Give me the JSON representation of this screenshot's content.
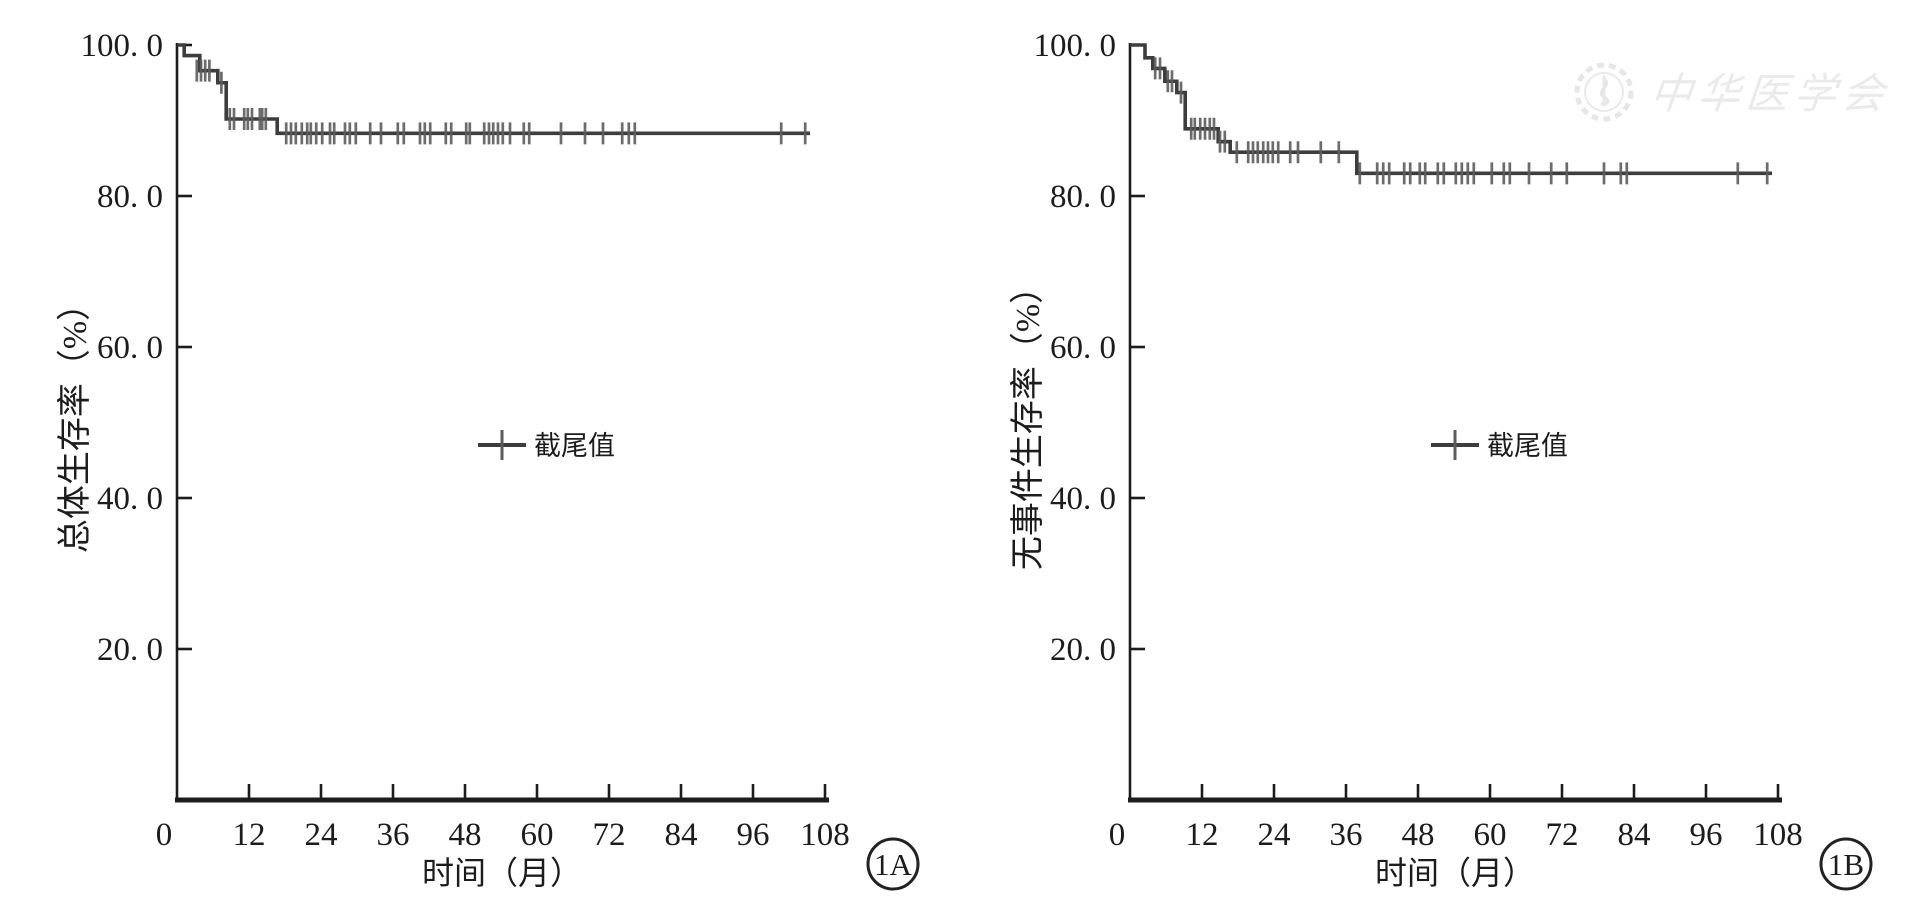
{
  "figure": {
    "background": "#ffffff",
    "curve_color": "#3d3d3d",
    "censor_color": "#5c5c5c",
    "axis_color": "#1c1c1c",
    "watermark": {
      "text": "中华医学会",
      "logo": "cma-emblem-icon",
      "color": "#eaeaea"
    }
  },
  "chart_data": [
    {
      "type": "line",
      "subtype": "kaplan-meier-step",
      "panel_tag": "1A",
      "xlabel": "时间（月）",
      "ylabel": "总体生存率（%）",
      "legend_label": "截尾值",
      "legend_marker": "censor-plus",
      "xlim": [
        0,
        110
      ],
      "ylim": [
        0,
        100
      ],
      "x_ticks": [
        0,
        12,
        24,
        36,
        48,
        60,
        72,
        84,
        96,
        108
      ],
      "y_tick_values": [
        100,
        80,
        60,
        40,
        20
      ],
      "y_tick_labels": [
        "100. 0",
        "80. 0",
        "60. 0",
        "40. 0",
        "20. 0"
      ],
      "series": [
        {
          "name": "总体生存率",
          "steps": [
            [
              0,
              100
            ],
            [
              1.2,
              98.6
            ],
            [
              3.8,
              96.6
            ],
            [
              6.8,
              95.0
            ],
            [
              8.2,
              90.2
            ],
            [
              16.7,
              88.3
            ]
          ],
          "end_month": 105.5
        }
      ],
      "censor_marks": [
        [
          3.3,
          96.6
        ],
        [
          4.0,
          96.6
        ],
        [
          4.7,
          96.6
        ],
        [
          5.4,
          96.6
        ],
        [
          7.4,
          95.0
        ],
        [
          8.8,
          90.2
        ],
        [
          9.5,
          90.2
        ],
        [
          11.2,
          90.2
        ],
        [
          11.8,
          90.2
        ],
        [
          12.5,
          90.2
        ],
        [
          13.8,
          90.2
        ],
        [
          14.2,
          90.2
        ],
        [
          14.8,
          90.2
        ],
        [
          18.2,
          88.3
        ],
        [
          19.0,
          88.3
        ],
        [
          19.8,
          88.3
        ],
        [
          20.8,
          88.3
        ],
        [
          21.7,
          88.3
        ],
        [
          22.3,
          88.3
        ],
        [
          23.2,
          88.3
        ],
        [
          24.2,
          88.3
        ],
        [
          25.5,
          88.3
        ],
        [
          26.2,
          88.3
        ],
        [
          28.0,
          88.3
        ],
        [
          28.8,
          88.3
        ],
        [
          29.8,
          88.3
        ],
        [
          32.2,
          88.3
        ],
        [
          34.0,
          88.3
        ],
        [
          36.8,
          88.3
        ],
        [
          37.8,
          88.3
        ],
        [
          40.5,
          88.3
        ],
        [
          41.3,
          88.3
        ],
        [
          42.2,
          88.3
        ],
        [
          44.8,
          88.3
        ],
        [
          45.7,
          88.3
        ],
        [
          48.2,
          88.3
        ],
        [
          48.8,
          88.3
        ],
        [
          51.2,
          88.3
        ],
        [
          52.0,
          88.3
        ],
        [
          52.7,
          88.3
        ],
        [
          53.5,
          88.3
        ],
        [
          54.3,
          88.3
        ],
        [
          55.5,
          88.3
        ],
        [
          57.8,
          88.3
        ],
        [
          58.7,
          88.3
        ],
        [
          64.0,
          88.3
        ],
        [
          68.0,
          88.3
        ],
        [
          71.0,
          88.3
        ],
        [
          74.2,
          88.3
        ],
        [
          75.3,
          88.3
        ],
        [
          76.3,
          88.3
        ],
        [
          100.7,
          88.3
        ],
        [
          104.7,
          88.3
        ]
      ]
    },
    {
      "type": "line",
      "subtype": "kaplan-meier-step",
      "panel_tag": "1B",
      "xlabel": "时间（月）",
      "ylabel": "无事件生存率（%）",
      "legend_label": "截尾值",
      "legend_marker": "censor-plus",
      "xlim": [
        0,
        110
      ],
      "ylim": [
        0,
        100
      ],
      "x_ticks": [
        0,
        12,
        24,
        36,
        48,
        60,
        72,
        84,
        96,
        108
      ],
      "y_tick_values": [
        100,
        80,
        60,
        40,
        20
      ],
      "y_tick_labels": [
        "100. 0",
        "80. 0",
        "60. 0",
        "40. 0",
        "20. 0"
      ],
      "series": [
        {
          "name": "无事件生存率",
          "steps": [
            [
              0,
              100
            ],
            [
              2.5,
              98.3
            ],
            [
              3.8,
              96.9
            ],
            [
              5.8,
              95.2
            ],
            [
              7.8,
              93.7
            ],
            [
              9.2,
              88.9
            ],
            [
              14.7,
              87.2
            ],
            [
              16.7,
              85.8
            ],
            [
              37.8,
              83.0
            ]
          ],
          "end_month": 107
        }
      ],
      "censor_marks": [
        [
          4.2,
          96.9
        ],
        [
          5.0,
          96.9
        ],
        [
          6.3,
          95.2
        ],
        [
          7.0,
          95.2
        ],
        [
          8.5,
          93.7
        ],
        [
          10.2,
          88.9
        ],
        [
          10.8,
          88.9
        ],
        [
          11.7,
          88.9
        ],
        [
          12.5,
          88.9
        ],
        [
          13.3,
          88.9
        ],
        [
          14.0,
          88.9
        ],
        [
          15.0,
          87.2
        ],
        [
          15.8,
          87.2
        ],
        [
          17.8,
          85.8
        ],
        [
          19.7,
          85.8
        ],
        [
          20.5,
          85.8
        ],
        [
          21.3,
          85.8
        ],
        [
          22.2,
          85.8
        ],
        [
          23.0,
          85.8
        ],
        [
          23.8,
          85.8
        ],
        [
          24.7,
          85.8
        ],
        [
          26.7,
          85.8
        ],
        [
          28.0,
          85.8
        ],
        [
          31.8,
          85.8
        ],
        [
          34.8,
          85.8
        ],
        [
          38.3,
          83.0
        ],
        [
          41.2,
          83.0
        ],
        [
          42.2,
          83.0
        ],
        [
          43.2,
          83.0
        ],
        [
          45.7,
          83.0
        ],
        [
          46.7,
          83.0
        ],
        [
          48.3,
          83.0
        ],
        [
          49.2,
          83.0
        ],
        [
          51.3,
          83.0
        ],
        [
          52.3,
          83.0
        ],
        [
          54.3,
          83.0
        ],
        [
          55.3,
          83.0
        ],
        [
          56.3,
          83.0
        ],
        [
          57.3,
          83.0
        ],
        [
          60.3,
          83.0
        ],
        [
          62.3,
          83.0
        ],
        [
          63.3,
          83.0
        ],
        [
          66.5,
          83.0
        ],
        [
          70.2,
          83.0
        ],
        [
          72.8,
          83.0
        ],
        [
          79.0,
          83.0
        ],
        [
          81.8,
          83.0
        ],
        [
          82.8,
          83.0
        ],
        [
          101.3,
          83.0
        ],
        [
          106.2,
          83.0
        ]
      ]
    }
  ]
}
